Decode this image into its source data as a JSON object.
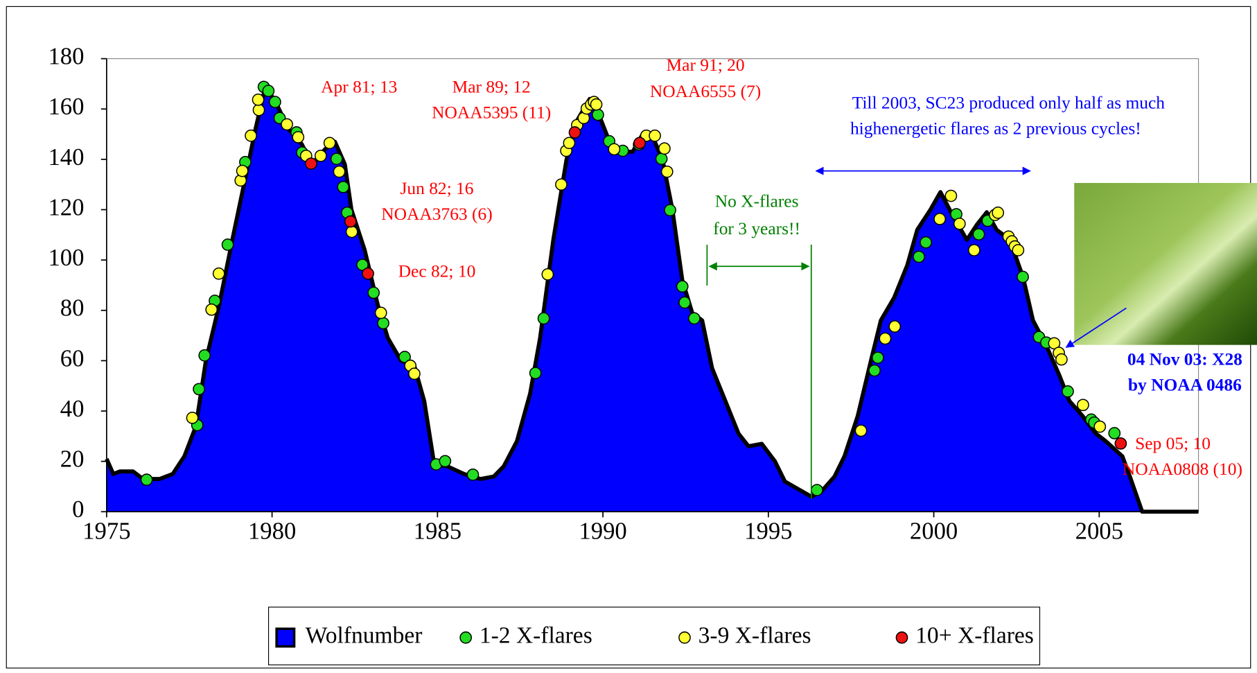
{
  "chart_data": {
    "type": "area",
    "xlim": [
      1975,
      2008
    ],
    "xticks": [
      1975,
      1980,
      1985,
      1990,
      1995,
      2000,
      2005
    ],
    "ylim": [
      0,
      180
    ],
    "yticks": [
      0,
      20,
      40,
      60,
      80,
      100,
      120,
      140,
      160,
      180
    ],
    "legend": "bottom",
    "series": [
      {
        "name": "Wolfnumber",
        "type": "area",
        "color": "#0000ff",
        "x": [
          1975.0,
          1975.2,
          1975.4,
          1975.8,
          1976.1,
          1976.6,
          1977.0,
          1977.35,
          1977.7,
          1978.0,
          1978.4,
          1978.8,
          1979.2,
          1979.5,
          1979.8,
          1980.1,
          1980.5,
          1980.9,
          1981.2,
          1981.6,
          1981.9,
          1982.2,
          1982.4,
          1982.8,
          1983.2,
          1983.5,
          1983.9,
          1984.3,
          1984.6,
          1984.9,
          1985.3,
          1985.8,
          1986.3,
          1986.7,
          1987.0,
          1987.4,
          1987.8,
          1988.1,
          1988.5,
          1988.9,
          1989.2,
          1989.6,
          1989.9,
          1990.2,
          1990.6,
          1990.9,
          1991.2,
          1991.5,
          1991.8,
          1992.1,
          1992.4,
          1992.7,
          1993.0,
          1993.3,
          1993.7,
          1994.1,
          1994.4,
          1994.8,
          1995.2,
          1995.5,
          1995.9,
          1996.3,
          1996.6,
          1997.0,
          1997.3,
          1997.7,
          1998.1,
          1998.4,
          1998.8,
          1999.2,
          1999.5,
          1999.9,
          2000.2,
          2000.6,
          2001.0,
          2001.3,
          2001.6,
          2001.9,
          2002.3,
          2002.7,
          2003.0,
          2003.4,
          2003.8,
          2004.1,
          2004.5,
          2004.9,
          2005.2,
          2005.7,
          2005.9,
          2006.3,
          2008.0
        ],
        "values": [
          21,
          15,
          16,
          16,
          13,
          13,
          15,
          22,
          34,
          60,
          82,
          108,
          133,
          152,
          169,
          163,
          152,
          146,
          138,
          144,
          147,
          138,
          120,
          104,
          82,
          69,
          60,
          58,
          44,
          19,
          18,
          15,
          13,
          14,
          18,
          28,
          47,
          69,
          108,
          140,
          155,
          164,
          157,
          147,
          143,
          143,
          150,
          149,
          140,
          120,
          92,
          79,
          76,
          57,
          44,
          31,
          26,
          27,
          20,
          12,
          9,
          6,
          8,
          14,
          22,
          38,
          60,
          76,
          85,
          98,
          112,
          120,
          127,
          117,
          108,
          114,
          119,
          112,
          108,
          93,
          76,
          66,
          54,
          44,
          38,
          31,
          28,
          22,
          15,
          0,
          0
        ]
      },
      {
        "name": "1-2 X-flares",
        "type": "scatter",
        "color": "#22dd22",
        "x": [
          1976.21,
          1977.74,
          1977.79,
          1977.96,
          1978.27,
          1978.66,
          1979.19,
          1979.75,
          1979.89,
          1980.09,
          1980.23,
          1980.74,
          1980.91,
          1981.95,
          1982.15,
          1982.27,
          1982.73,
          1983.07,
          1983.36,
          1984.01,
          1984.96,
          1985.23,
          1986.07,
          1987.96,
          1988.21,
          1989.85,
          1990.19,
          1990.6,
          1991.09,
          1991.77,
          1992.03,
          1992.4,
          1992.47,
          1992.76,
          1996.47,
          1998.21,
          1998.31,
          1999.55,
          1999.76,
          2000.68,
          2001.36,
          2001.63,
          2002.69,
          2003.18,
          2003.4,
          2004.05,
          2004.76,
          2004.85,
          2005.46
        ],
        "values": [
          12.7,
          34.4,
          48.7,
          62.1,
          83.8,
          106.1,
          138.9,
          168.8,
          167.2,
          162.8,
          156.4,
          150.7,
          142.7,
          140.2,
          129.0,
          118.8,
          98.1,
          87.0,
          74.9,
          61.5,
          18.8,
          20.1,
          14.7,
          55.1,
          76.8,
          157.7,
          147.2,
          143.4,
          145.9,
          140.2,
          119.8,
          89.5,
          83.1,
          76.8,
          8.6,
          56.1,
          61.2,
          101.3,
          107.0,
          118.2,
          110.2,
          115.6,
          93.3,
          69.4,
          67.2,
          47.8,
          36.6,
          35.4,
          31.2
        ]
      },
      {
        "name": "3-9 X-flares",
        "type": "scatter",
        "color": "#ffff33",
        "x": [
          1977.59,
          1978.17,
          1978.39,
          1979.05,
          1979.1,
          1979.36,
          1979.6,
          1979.58,
          1980.45,
          1980.79,
          1981.03,
          1981.47,
          1981.74,
          1982.03,
          1982.41,
          1983.29,
          1984.18,
          1984.3,
          1988.33,
          1988.74,
          1988.89,
          1988.98,
          1989.22,
          1989.42,
          1989.51,
          1989.64,
          1989.73,
          1989.8,
          1990.34,
          1991.31,
          1991.57,
          1991.86,
          1991.94,
          1997.8,
          1998.53,
          1998.82,
          2000.18,
          2000.52,
          2000.78,
          2001.22,
          2001.85,
          2001.94,
          2002.26,
          2002.36,
          2002.45,
          2002.55,
          2003.64,
          2003.78,
          2003.86,
          2004.51,
          2005.02
        ],
        "values": [
          37.3,
          80.3,
          94.6,
          131.6,
          135.4,
          149.4,
          159.6,
          163.7,
          153.9,
          148.8,
          141.4,
          141.4,
          146.5,
          135.1,
          111.2,
          79.0,
          58.0,
          54.8,
          94.3,
          130.0,
          143.4,
          146.5,
          153.6,
          156.4,
          160.2,
          161.8,
          162.8,
          161.8,
          144.0,
          149.4,
          149.4,
          144.3,
          135.1,
          32.2,
          68.8,
          73.6,
          116.3,
          125.5,
          114.4,
          103.9,
          117.9,
          118.8,
          109.3,
          107.4,
          105.4,
          103.9,
          66.9,
          63.1,
          60.5,
          42.4,
          33.8
        ]
      },
      {
        "name": "10+ X-flares",
        "type": "scatter",
        "color": "#ee1111",
        "x": [
          1981.18,
          1982.37,
          1982.9,
          1989.15,
          1991.11,
          2005.65
        ],
        "values": [
          138.3,
          115.3,
          94.6,
          150.7,
          146.5,
          27.1
        ]
      }
    ],
    "annotations": [
      {
        "text": "Apr 81; 13",
        "color": "#ff0000"
      },
      {
        "text": "Mar 89; 12",
        "color": "#ff0000"
      },
      {
        "text": "NOAA5395 (11)",
        "color": "#ff0000"
      },
      {
        "text": "Mar 91; 20",
        "color": "#ff0000"
      },
      {
        "text": "NOAA6555 (7)",
        "color": "#ff0000"
      },
      {
        "text": "Jun 82; 16",
        "color": "#ff0000"
      },
      {
        "text": "NOAA3763 (6)",
        "color": "#ff0000"
      },
      {
        "text": "Dec 82; 10",
        "color": "#ff0000"
      },
      {
        "text": "Sep 05; 10",
        "color": "#ff0000"
      },
      {
        "text": "NOAA0808 (10)",
        "color": "#ff0000"
      },
      {
        "text": "No X-flares",
        "color": "#008000"
      },
      {
        "text": "for 3 years!!",
        "color": "#008000"
      },
      {
        "text": "Till 2003, SC23 produced only half as much",
        "color": "#0000ff"
      },
      {
        "text": "highenergetic flares as 2 previous cycles!",
        "color": "#0000ff"
      },
      {
        "text": "04 Nov 03: X28",
        "color": "#0000ff"
      },
      {
        "text": "by NOAA 0486",
        "color": "#0000ff"
      }
    ]
  }
}
